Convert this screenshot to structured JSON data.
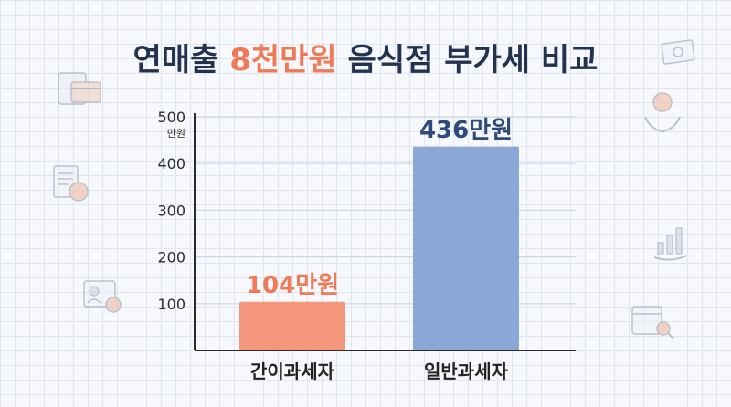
{
  "title": {
    "prefix": "연매출 ",
    "highlight": "8천만원",
    "suffix": " 음식점 부가세 비교"
  },
  "colors": {
    "title": "#22324f",
    "highlight": "#ef7a55",
    "simple_bar": "#f4967b",
    "general_bar": "#8aa7d6",
    "simple_label": "#ef7a55",
    "general_label": "#2e4a7c",
    "axis": "#2b2b2b"
  },
  "icons": [
    "credit-card-icon",
    "document-coin-icon",
    "id-card-icon",
    "money-bill-icon",
    "coin-hand-icon",
    "growth-chart-icon",
    "calendar-search-icon"
  ],
  "chart_data": {
    "type": "bar",
    "categories": [
      "간이과세자",
      "일반과세자"
    ],
    "values": [
      104,
      436
    ],
    "data_labels": [
      "104만원",
      "436만원"
    ],
    "ylabel": "만원",
    "yticks": [
      100,
      200,
      300,
      400,
      500
    ],
    "ylim": [
      0,
      500
    ],
    "grid": true,
    "legend": "none"
  }
}
